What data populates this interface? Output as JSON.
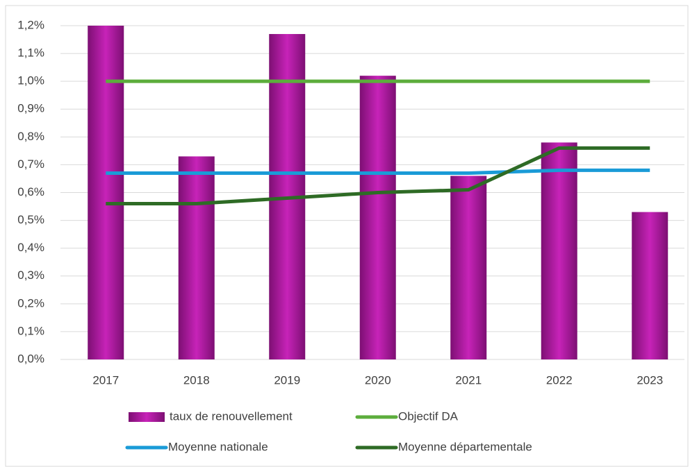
{
  "chart_data": {
    "type": "bar",
    "categories": [
      "2017",
      "2018",
      "2019",
      "2020",
      "2021",
      "2022",
      "2023"
    ],
    "series": [
      {
        "name": "taux de renouvellement",
        "type": "bar",
        "color": "#b31aa6",
        "values": [
          1.2,
          0.73,
          1.17,
          1.02,
          0.66,
          0.78,
          0.53
        ]
      },
      {
        "name": "Objectif DA",
        "type": "line",
        "color": "#5cad3c",
        "values": [
          1.0,
          1.0,
          1.0,
          1.0,
          1.0,
          1.0,
          1.0
        ]
      },
      {
        "name": "Moyenne nationale",
        "type": "line",
        "color": "#1a9bd7",
        "values": [
          0.67,
          0.67,
          0.67,
          0.67,
          0.67,
          0.68,
          0.68
        ]
      },
      {
        "name": "Moyenne départementale",
        "type": "line",
        "color": "#2e6b25",
        "values": [
          0.56,
          0.56,
          0.58,
          0.6,
          0.61,
          0.76,
          0.76
        ]
      }
    ],
    "ylim": [
      0,
      1.2
    ],
    "yticks": [
      {
        "value": 0,
        "label": "0,0%"
      },
      {
        "value": 0.1,
        "label": "0,1%"
      },
      {
        "value": 0.2,
        "label": "0,2%"
      },
      {
        "value": 0.3,
        "label": "0,3%"
      },
      {
        "value": 0.4,
        "label": "0,4%"
      },
      {
        "value": 0.5,
        "label": "0,5%"
      },
      {
        "value": 0.6,
        "label": "0,6%"
      },
      {
        "value": 0.7,
        "label": "0,7%"
      },
      {
        "value": 0.8,
        "label": "0,8%"
      },
      {
        "value": 0.9,
        "label": "0,9%"
      },
      {
        "value": 1.0,
        "label": "1,0%"
      },
      {
        "value": 1.1,
        "label": "1,1%"
      },
      {
        "value": 1.2,
        "label": "1,2%"
      }
    ],
    "grid": true,
    "legend": "bottom"
  }
}
